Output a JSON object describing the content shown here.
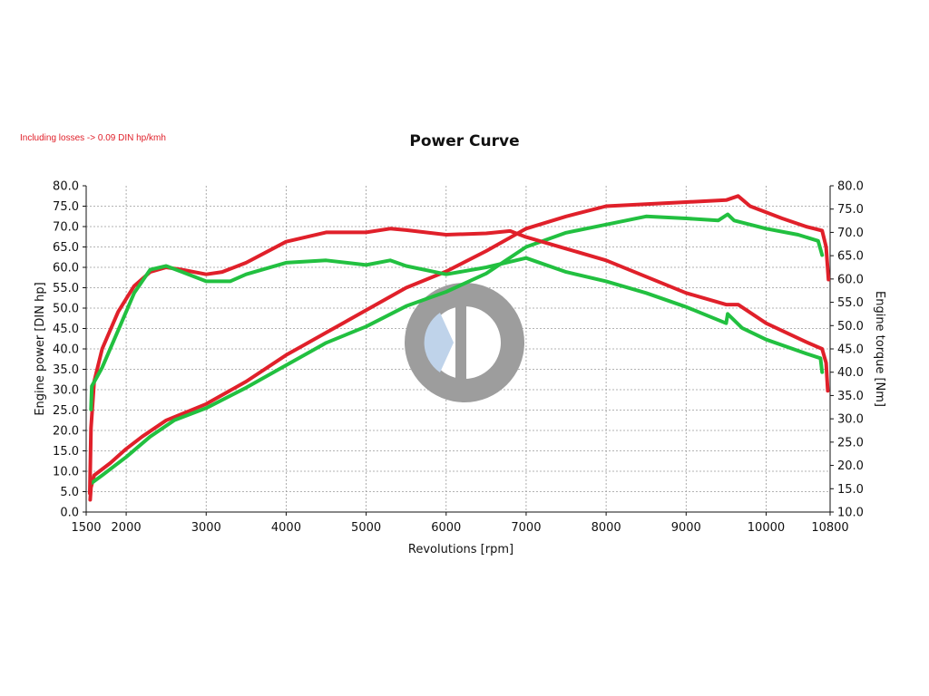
{
  "note": "Including losses -> 0.09 DIN hp/kmh",
  "chart_data": {
    "type": "line",
    "title": "Power Curve",
    "xlabel": "Revolutions [rpm]",
    "ylabel_left": "Engine power [DIN hp]",
    "ylabel_right": "Engine torque [Nm]",
    "xlim": [
      1500,
      10800
    ],
    "ylim_left": [
      0,
      80
    ],
    "ylim_right": [
      10,
      80
    ],
    "x_ticks": [
      "1500",
      "2000",
      "3000",
      "4000",
      "5000",
      "6000",
      "7000",
      "8000",
      "9000",
      "10000",
      "10800"
    ],
    "y_left_ticks": [
      "0.0",
      "5.0",
      "10.0",
      "15.0",
      "20.0",
      "25.0",
      "30.0",
      "35.0",
      "40.0",
      "45.0",
      "50.0",
      "55.0",
      "60.0",
      "65.0",
      "70.0",
      "75.0",
      "80.0"
    ],
    "y_right_ticks": [
      "10.0",
      "15.0",
      "20.0",
      "25.0",
      "30.0",
      "35.0",
      "40.0",
      "45.0",
      "50.0",
      "55.0",
      "60.0",
      "65.0",
      "70.0",
      "75.0",
      "80.0"
    ],
    "grid": true,
    "series": [
      {
        "axis": "left",
        "color": "#e0202a",
        "points": [
          [
            1550,
            3
          ],
          [
            1560,
            6
          ],
          [
            1600,
            9
          ],
          [
            1800,
            12
          ],
          [
            2000,
            15.5
          ],
          [
            2200,
            18.5
          ],
          [
            2500,
            22.5
          ],
          [
            3000,
            26.5
          ],
          [
            3500,
            32
          ],
          [
            4000,
            38.5
          ],
          [
            4500,
            44
          ],
          [
            5000,
            49.5
          ],
          [
            5500,
            55
          ],
          [
            6000,
            59
          ],
          [
            6500,
            64
          ],
          [
            7000,
            69.5
          ],
          [
            7500,
            72.5
          ],
          [
            8000,
            75
          ],
          [
            8500,
            75.5
          ],
          [
            9000,
            76
          ],
          [
            9500,
            76.5
          ],
          [
            9650,
            77.5
          ],
          [
            9800,
            75
          ],
          [
            10000,
            73.5
          ],
          [
            10200,
            72
          ],
          [
            10500,
            70
          ],
          [
            10700,
            69
          ],
          [
            10750,
            65
          ],
          [
            10780,
            57
          ]
        ]
      },
      {
        "axis": "left",
        "color": "#22c040",
        "points": [
          [
            1560,
            7
          ],
          [
            1700,
            9
          ],
          [
            2000,
            13.5
          ],
          [
            2300,
            18.5
          ],
          [
            2600,
            22.5
          ],
          [
            3000,
            25.5
          ],
          [
            3500,
            30.5
          ],
          [
            4000,
            36
          ],
          [
            4500,
            41.5
          ],
          [
            5000,
            45.5
          ],
          [
            5500,
            50.5
          ],
          [
            6000,
            54
          ],
          [
            6500,
            58.5
          ],
          [
            7000,
            65
          ],
          [
            7500,
            68.5
          ],
          [
            8000,
            70.5
          ],
          [
            8500,
            72.5
          ],
          [
            9000,
            72
          ],
          [
            9400,
            71.5
          ],
          [
            9520,
            73
          ],
          [
            9600,
            71.5
          ],
          [
            10000,
            69.5
          ],
          [
            10400,
            68
          ],
          [
            10650,
            66.5
          ],
          [
            10700,
            63
          ]
        ]
      },
      {
        "axis": "right",
        "color": "#e0202a",
        "points": [
          [
            1545,
            14
          ],
          [
            1560,
            28
          ],
          [
            1600,
            38
          ],
          [
            1700,
            45
          ],
          [
            1900,
            53
          ],
          [
            2100,
            58.5
          ],
          [
            2300,
            61.5
          ],
          [
            2500,
            62.5
          ],
          [
            2700,
            62
          ],
          [
            3000,
            61
          ],
          [
            3200,
            61.5
          ],
          [
            3500,
            63.5
          ],
          [
            4000,
            68
          ],
          [
            4500,
            70
          ],
          [
            5000,
            70
          ],
          [
            5300,
            70.8
          ],
          [
            5500,
            70.5
          ],
          [
            6000,
            69.5
          ],
          [
            6500,
            69.8
          ],
          [
            6800,
            70.3
          ],
          [
            7000,
            69
          ],
          [
            7500,
            66.5
          ],
          [
            8000,
            64
          ],
          [
            8500,
            60.5
          ],
          [
            9000,
            57
          ],
          [
            9500,
            54.5
          ],
          [
            9650,
            54.5
          ],
          [
            10000,
            50.5
          ],
          [
            10500,
            46.5
          ],
          [
            10700,
            45
          ],
          [
            10750,
            42
          ],
          [
            10770,
            36
          ]
        ]
      },
      {
        "axis": "right",
        "color": "#22c040",
        "points": [
          [
            1560,
            32
          ],
          [
            1570,
            37
          ],
          [
            1700,
            41
          ],
          [
            1900,
            49
          ],
          [
            2100,
            57
          ],
          [
            2300,
            62
          ],
          [
            2500,
            62.8
          ],
          [
            2700,
            61.5
          ],
          [
            3000,
            59.5
          ],
          [
            3300,
            59.5
          ],
          [
            3500,
            61
          ],
          [
            4000,
            63.5
          ],
          [
            4500,
            64
          ],
          [
            5000,
            63
          ],
          [
            5300,
            64
          ],
          [
            5500,
            62.8
          ],
          [
            6000,
            61
          ],
          [
            6500,
            62.5
          ],
          [
            7000,
            64.5
          ],
          [
            7500,
            61.5
          ],
          [
            8000,
            59.5
          ],
          [
            8500,
            57
          ],
          [
            9000,
            54
          ],
          [
            9500,
            50.5
          ],
          [
            9520,
            52.5
          ],
          [
            9700,
            49.5
          ],
          [
            10000,
            47
          ],
          [
            10500,
            44
          ],
          [
            10680,
            43
          ],
          [
            10700,
            40
          ]
        ]
      }
    ]
  }
}
